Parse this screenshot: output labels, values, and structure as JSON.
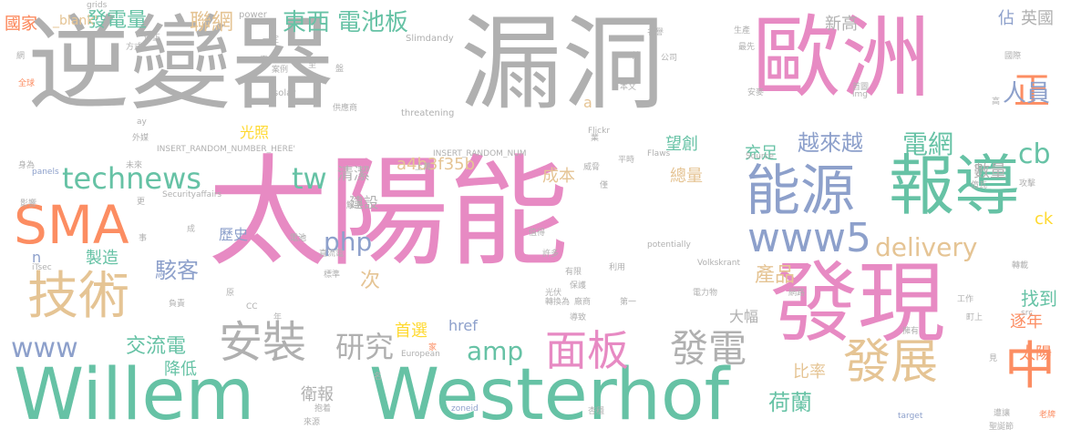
{
  "palette": {
    "gray": "#b0b0b0",
    "pink": "#e78ac3",
    "teal": "#66c2a5",
    "orange": "#fc8d62",
    "blue": "#8da0cb",
    "green": "#a6d854",
    "yellow": "#ffd92f",
    "tan": "#e5c494"
  },
  "words": [
    "太陽能",
    "逆變器",
    "漏洞",
    "歐洲",
    "發現",
    "Willem",
    "Westerhof",
    "報導",
    "能源",
    "SMA",
    "技術",
    "發展",
    "安裝",
    "面板",
    "中",
    "www5",
    "technews",
    "www",
    "發電",
    "研究",
    "delivery",
    "amp",
    "正",
    "人員",
    "php",
    "tw",
    "cb",
    "電網",
    "電池板",
    "東西",
    "聯網",
    "發電量",
    "越來越",
    "駭客",
    "交流電",
    "荷蘭",
    "產品",
    "數量",
    "a4b3f35b",
    "找到",
    "望創",
    "清潔",
    "光照",
    "新高",
    "充足",
    "製造",
    "歷史",
    "成本",
    "建設",
    "總量",
    "比率",
    "首選",
    "大幅",
    "逐年",
    "太陽",
    "衛報",
    "次",
    "降低",
    "href",
    "英國",
    "佔",
    "ck",
    "n",
    "國家",
    "_blank'",
    "grids",
    "power",
    "Slimdandy",
    "threatening",
    "solar",
    "Flickr",
    "INSERT_RANDOM_NUMBER_HERE'",
    "INSERT_RANDOM_NUM",
    "panels",
    "Securityaffairs",
    "iTsec",
    "zoneid",
    "target",
    "Volkskrant",
    "European",
    "potentially",
    "src",
    "img",
    "Flaws",
    "Source",
    "a",
    "ay",
    "CC",
    "首圖",
    "公司",
    "本文",
    "名譽",
    "生產",
    "方式",
    "修正",
    "案例",
    "供應商",
    "外媒",
    "未來",
    "影響",
    "身為",
    "攻擊",
    "轉載",
    "工作",
    "電力物",
    "網路",
    "直流電",
    "標準",
    "有限",
    "廠商",
    "利用",
    "保護",
    "許多",
    "電池",
    "第一",
    "導致",
    "家",
    "年",
    "原",
    "事",
    "成",
    "更",
    "上萬",
    "解決",
    "平時",
    "威脅",
    "僅",
    "億瓦",
    "安麥",
    "國際",
    "町上",
    "擁有",
    "老牌",
    "遭讓",
    "聖誕節",
    "抱着",
    "來源",
    "杏穩",
    "名",
    "負責",
    "電池",
    "業",
    "至",
    "見",
    "最先",
    "前",
    "干",
    "盤",
    "國家",
    "網",
    "全球",
    "光伏",
    "轉換為",
    "值得",
    "一定",
    "高"
  ]
}
